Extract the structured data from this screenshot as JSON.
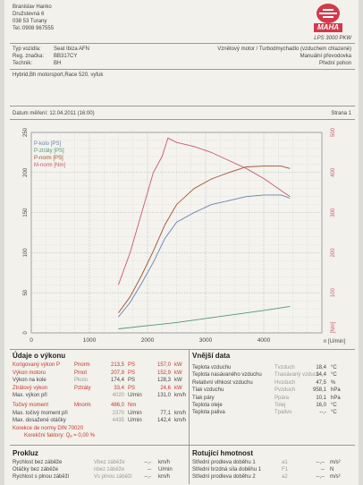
{
  "owner": {
    "name": "Branislav Hanko",
    "street": "Družstevná 6",
    "city": "038 53 Turany",
    "phone": "Tel.:0908 967555"
  },
  "logo": {
    "text": "MAHA",
    "model": "LPS 3000 PKW"
  },
  "vehicle": {
    "type_label": "Typ vozidla:",
    "type_value": "Seat Ibiza AFN",
    "reg_label": "Reg. značka:",
    "reg_value": "BB317CY",
    "tech_label": "Technik:",
    "tech_value": "BH",
    "engine": "Vznětový motor / Turbodmychadlo (vzduchem chlazené)",
    "gearbox": "Manuální převodovka",
    "drive": "Přední pohon"
  },
  "note": "Hybrid,Bh motorsport,Race 520, vyfuk",
  "measurement": {
    "date_label": "Datum měření: 12.04.2011 (16:00)",
    "page_label": "Strana 1"
  },
  "chart_data": {
    "type": "line",
    "xlabel": "n [U/min]",
    "ylabel_right": "[Nm]",
    "x_range": [
      0,
      5000
    ],
    "x_ticks": [
      0,
      1000,
      2000,
      3000,
      4000
    ],
    "y_left_range": [
      0,
      250
    ],
    "y_left_ticks": [
      0,
      50,
      100,
      150,
      200,
      250
    ],
    "y_right_range": [
      0,
      500
    ],
    "y_right_ticks": [
      100,
      200,
      300,
      400,
      500
    ],
    "legend": [
      "P-kolo [PS]",
      "P-ztráty [PS]",
      "P-norm [PS]",
      "M-norm [Nm]"
    ],
    "colors": {
      "p_kolo": "#6a7fb0",
      "p_ztraty": "#4f9a6a",
      "p_norm": "#a0522d",
      "m_norm": "#c85a6e"
    },
    "series": [
      {
        "name": "P-kolo [PS]",
        "axis": "left",
        "x": [
          1500,
          1700,
          1900,
          2100,
          2300,
          2500,
          2800,
          3100,
          3400,
          3700,
          4000,
          4300,
          4450
        ],
        "y": [
          20,
          38,
          62,
          88,
          118,
          138,
          150,
          160,
          165,
          170,
          172,
          172,
          168
        ]
      },
      {
        "name": "P-ztráty [PS]",
        "axis": "left",
        "x": [
          1500,
          2000,
          2500,
          3000,
          3500,
          4000,
          4450
        ],
        "y": [
          5,
          9,
          13,
          18,
          23,
          28,
          33
        ]
      },
      {
        "name": "P-norm [PS]",
        "axis": "left",
        "x": [
          1500,
          1700,
          1900,
          2100,
          2300,
          2500,
          2800,
          3100,
          3400,
          3700,
          4000,
          4300,
          4450
        ],
        "y": [
          25,
          45,
          72,
          102,
          135,
          160,
          180,
          192,
          200,
          207,
          208,
          208,
          205
        ]
      },
      {
        "name": "M-norm [Nm]",
        "axis": "right",
        "x": [
          1500,
          1700,
          1900,
          2100,
          2250,
          2350,
          2500,
          2800,
          3100,
          3400,
          3700,
          4000,
          4300,
          4450
        ],
        "y": [
          120,
          200,
          300,
          400,
          440,
          486,
          475,
          465,
          450,
          430,
          410,
          385,
          355,
          340
        ]
      }
    ]
  },
  "results": {
    "title": "Údaje o výkonu",
    "rows": [
      {
        "label": "Korigovaný výkon P",
        "sym": "Pnorm",
        "v1": "213,5",
        "u1": "PS",
        "v2": "157,0",
        "u2": "kW",
        "cls": "red"
      },
      {
        "label": "Výkon motoru",
        "sym": "Pmot",
        "v1": "207,9",
        "u1": "PS",
        "v2": "152,9",
        "u2": "kW",
        "cls": "red"
      },
      {
        "label": "Výkon na kole",
        "sym": "Pkolo",
        "v1": "174,4",
        "u1": "PS",
        "v2": "128,3",
        "u2": "kW",
        "cls": ""
      },
      {
        "label": "Ztrátový výkon",
        "sym": "Pztráty",
        "v1": "33,4",
        "u1": "PS",
        "v2": "24,6",
        "u2": "kW",
        "cls": "red"
      },
      {
        "label": "Max. výkon při",
        "sym": "",
        "v1": "4020",
        "u1": "U/min",
        "v2": "131,0",
        "u2": "km/h",
        "cls": ""
      },
      {
        "label": "Točivý moment",
        "sym": "Mnorm",
        "v1": "486,0",
        "u1": "Nm",
        "v2": "",
        "u2": "",
        "cls": "red"
      },
      {
        "label": "Max. točivý moment při",
        "sym": "",
        "v1": "2370",
        "u1": "U/min",
        "v2": "77,1",
        "u2": "km/h",
        "cls": ""
      },
      {
        "label": "Max. dosažené otáčky",
        "sym": "",
        "v1": "4435",
        "u1": "U/min",
        "v2": "142,4",
        "u2": "km/h",
        "cls": ""
      }
    ],
    "norm": "Korekce de normy DIN 70020",
    "factor": "Korekční faktory: Qₐ =    0,00 %"
  },
  "conditions": {
    "title": "Vnější data",
    "rows": [
      {
        "label": "Teplota vzduchu",
        "sym": "Tvzduch",
        "v": "18,4",
        "u": "°C"
      },
      {
        "label": "Teplota nasávaného vzduchu",
        "sym": "Tnasávaný vzduch",
        "v": "14,4",
        "u": "°C"
      },
      {
        "label": "Relativní vlhkost vzduchu",
        "sym": "Hvzduch",
        "v": "47,5",
        "u": "%"
      },
      {
        "label": "Tlak vzduchu",
        "sym": "Pvzduch",
        "v": "958,1",
        "u": "hPa"
      },
      {
        "label": "Tlak páry",
        "sym": "Ppára",
        "v": "10,1",
        "u": "hPa"
      },
      {
        "label": "Teplota oleje",
        "sym": "Tolej",
        "v": "16,0",
        "u": "°C"
      },
      {
        "label": "Teplota paliva",
        "sym": "Tpalivo",
        "v": "--,-",
        "u": "°C"
      }
    ]
  },
  "prokluz": {
    "title": "Prokluz",
    "rows": [
      {
        "label": "Rychlost bez záběže",
        "sym": "Vbez záběže",
        "v": "--,-",
        "u": "km/h"
      },
      {
        "label": "Otáčky bez záběže",
        "sym": "nbez záběže",
        "v": "--",
        "u": "U/min"
      },
      {
        "label": "Rychlost s plnou záběží",
        "sym": "Vs plnou záběží",
        "v": "--,-",
        "u": "km/h"
      }
    ]
  },
  "rotacni": {
    "title": "Rotující hmotnost",
    "rows": [
      {
        "label": "Střední prodleva doběhu 1",
        "sym": "a1",
        "v": "--,--",
        "u": "m/s²"
      },
      {
        "label": "Střední brzdná síla doběhu 1",
        "sym": "F1",
        "v": "--",
        "u": "N"
      },
      {
        "label": "Střední prodleva doběhu 2",
        "sym": "a2",
        "v": "--,--",
        "u": "m/s²"
      }
    ]
  }
}
